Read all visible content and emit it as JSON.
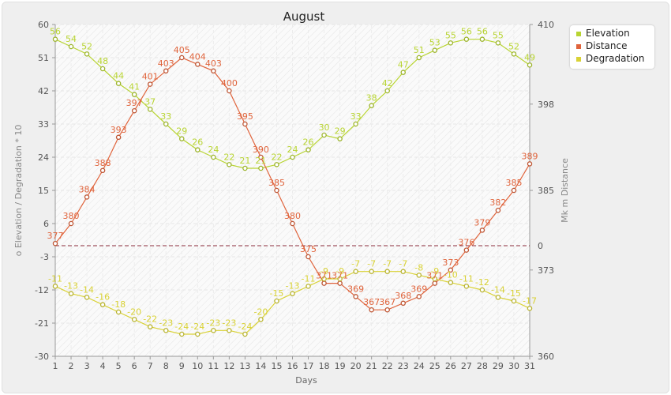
{
  "chart_data": {
    "type": "line",
    "title": "August",
    "xlabel": "Days",
    "ylabel_left": "o Elevation / Degradation * 10",
    "ylabel_right": "Mk m Distance",
    "x": [
      1,
      2,
      3,
      4,
      5,
      6,
      7,
      8,
      9,
      10,
      11,
      12,
      13,
      14,
      15,
      16,
      17,
      18,
      19,
      20,
      21,
      22,
      23,
      24,
      25,
      26,
      27,
      28,
      29,
      30,
      31
    ],
    "left_ylim": [
      -30,
      60
    ],
    "left_ticks": [
      -30,
      -21,
      -12,
      -3,
      6,
      15,
      24,
      33,
      42,
      51,
      60
    ],
    "right_ylim": [
      360,
      410
    ],
    "right_ticks": [
      {
        "value": 410,
        "label": "410"
      },
      {
        "value": 398,
        "label": "398"
      },
      {
        "value": 385,
        "label": "385"
      },
      {
        "value": 373,
        "label": "373"
      },
      {
        "value": 360,
        "label": "360"
      }
    ],
    "zero_line": {
      "value": 0,
      "label": "0",
      "color": "#8b2a3a"
    },
    "series": [
      {
        "name": "Elevation",
        "color": "#b8d432",
        "axis": "left",
        "values": [
          56,
          54,
          52,
          48,
          44,
          41,
          37,
          33,
          29,
          26,
          24,
          22,
          21,
          21,
          22,
          24,
          26,
          30,
          29,
          33,
          38,
          42,
          47,
          51,
          53,
          55,
          56,
          56,
          55,
          52,
          49
        ]
      },
      {
        "name": "Distance",
        "color": "#e0643c",
        "axis": "right",
        "values": [
          377,
          380,
          384,
          388,
          393,
          397,
          401,
          403,
          405,
          404,
          403,
          400,
          395,
          390,
          385,
          380,
          375,
          371,
          371,
          369,
          367,
          367,
          368,
          369,
          371,
          373,
          376,
          379,
          382,
          385,
          389
        ]
      },
      {
        "name": "Degradation",
        "color": "#d9d236",
        "axis": "left",
        "values": [
          -11,
          -13,
          -14,
          -16,
          -18,
          -20,
          -22,
          -23,
          -24,
          -24,
          -23,
          -23,
          -24,
          -20,
          -15,
          -13,
          -11,
          -9,
          -9,
          -7,
          -7,
          -7,
          -7,
          -8,
          -9,
          -10,
          -11,
          -12,
          -14,
          -15,
          -17
        ]
      }
    ],
    "grid": true,
    "legend_position": "top-right"
  }
}
